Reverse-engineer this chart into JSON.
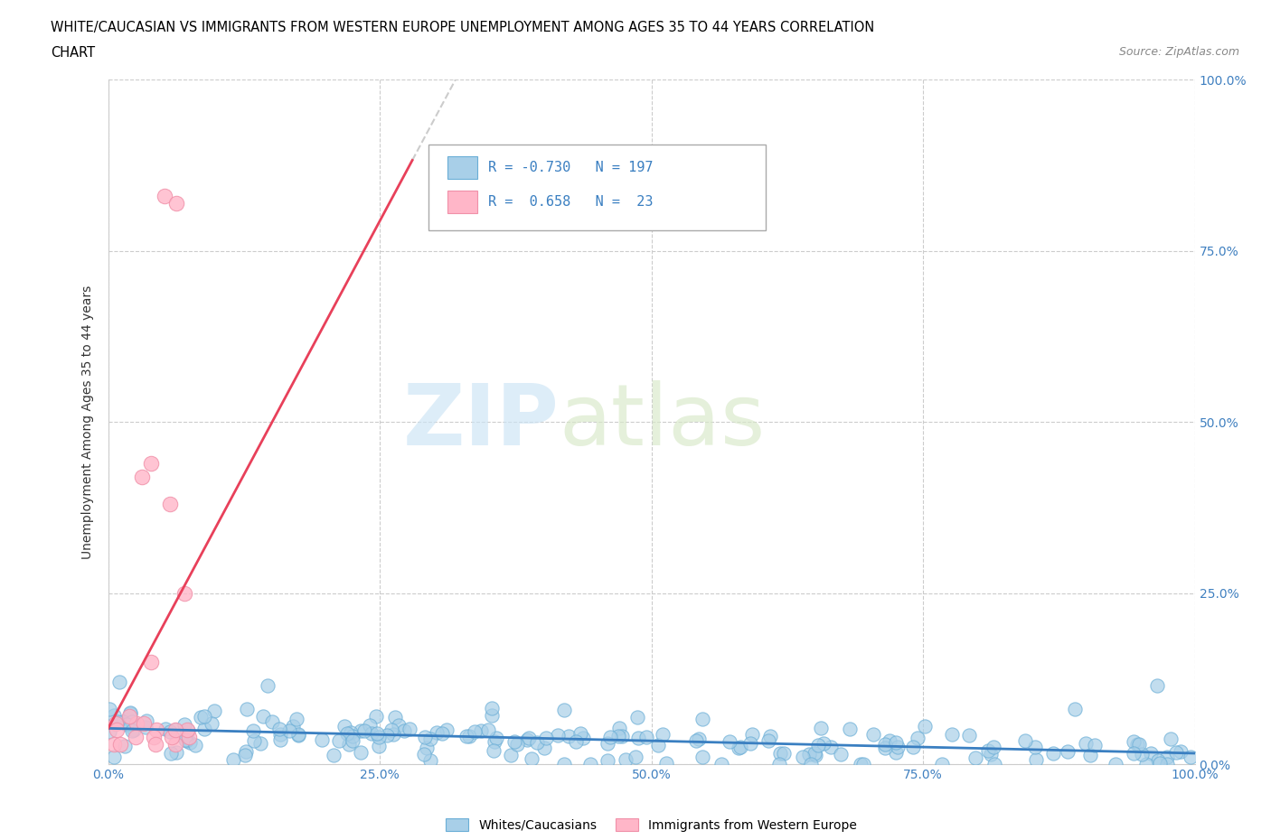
{
  "title_line1": "WHITE/CAUCASIAN VS IMMIGRANTS FROM WESTERN EUROPE UNEMPLOYMENT AMONG AGES 35 TO 44 YEARS CORRELATION",
  "title_line2": "CHART",
  "source_text": "Source: ZipAtlas.com",
  "ylabel": "Unemployment Among Ages 35 to 44 years",
  "x_tick_values": [
    0.0,
    0.25,
    0.5,
    0.75,
    1.0
  ],
  "y_tick_values": [
    0.0,
    0.25,
    0.5,
    0.75,
    1.0
  ],
  "blue_R": -0.73,
  "blue_N": 197,
  "pink_R": 0.658,
  "pink_N": 23,
  "blue_color": "#a8cfe8",
  "blue_edge_color": "#6aaed6",
  "pink_color": "#ffb6c8",
  "pink_edge_color": "#f090a8",
  "blue_line_color": "#3a7fc1",
  "pink_line_color": "#e8405a",
  "pink_dash_color": "#cccccc",
  "legend_label_blue": "Whites/Caucasians",
  "legend_label_pink": "Immigrants from Western Europe",
  "xlim": [
    0.0,
    1.0
  ],
  "ylim": [
    0.0,
    1.0
  ],
  "blue_scatter_seed": 42,
  "pink_scatter_seed": 99
}
